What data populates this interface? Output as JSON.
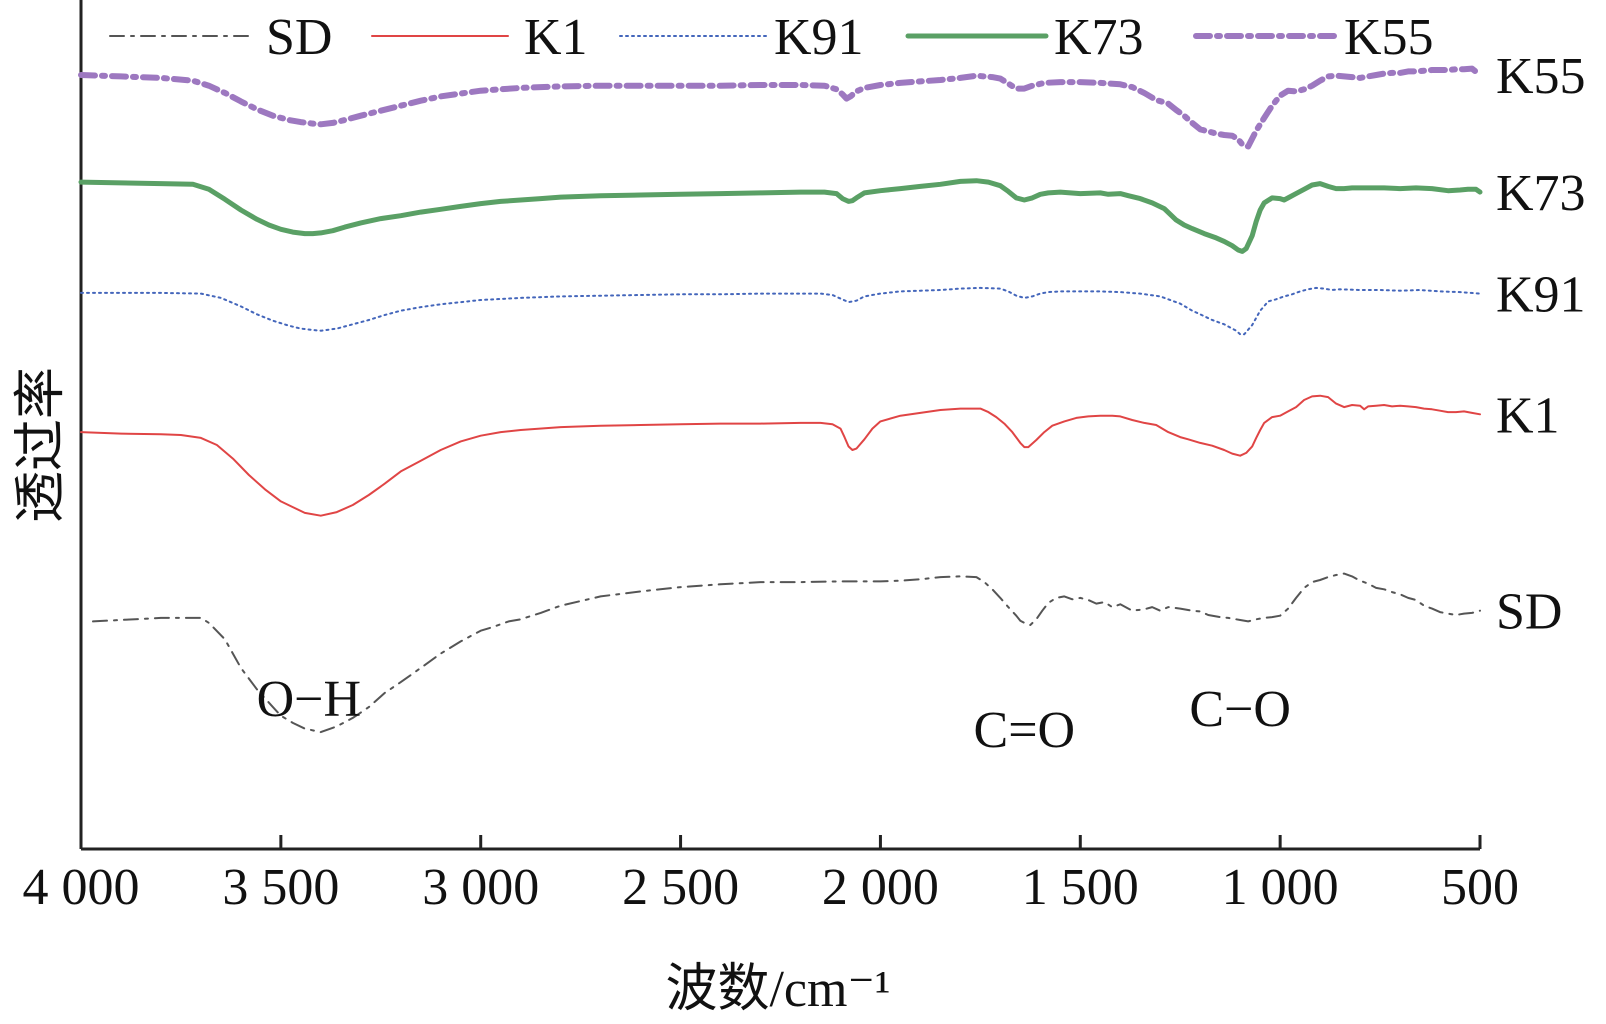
{
  "chart_data": {
    "type": "line",
    "title": "",
    "xlabel": "波数/cm⁻¹",
    "ylabel": "透过率",
    "xlim": [
      4000,
      500
    ],
    "xticks": [
      4000,
      3500,
      3000,
      2500,
      2000,
      1500,
      1000,
      500
    ],
    "xtick_labels": [
      "4 000",
      "3 500",
      "3 000",
      "2 500",
      "2 000",
      "1 500",
      "1 000",
      "500"
    ],
    "yticks": [],
    "y_units": "relative transmittance (offset stacked, arbitrary)",
    "legend": {
      "placement": "top",
      "entries": [
        "SD",
        "K1",
        "K91",
        "K73",
        "K55"
      ]
    },
    "annotations": [
      {
        "text": "O−H",
        "x": 3430
      },
      {
        "text": "C=O",
        "x": 1640
      },
      {
        "text": "C−O",
        "x": 1100
      }
    ],
    "series": [
      {
        "name": "SD",
        "color": "#555555",
        "dash": "dashdot",
        "width": 2,
        "end_label": "SD",
        "x": [
          3970,
          3800,
          3700,
          3680,
          3640,
          3600,
          3560,
          3520,
          3500,
          3470,
          3440,
          3400,
          3360,
          3320,
          3280,
          3240,
          3200,
          3150,
          3100,
          3050,
          3000,
          2970,
          2930,
          2900,
          2850,
          2800,
          2700,
          2600,
          2500,
          2400,
          2300,
          2200,
          2100,
          2000,
          1950,
          1900,
          1850,
          1800,
          1760,
          1740,
          1720,
          1700,
          1680,
          1660,
          1650,
          1640,
          1625,
          1610,
          1595,
          1580,
          1560,
          1540,
          1520,
          1500,
          1480,
          1460,
          1440,
          1420,
          1400,
          1370,
          1340,
          1320,
          1300,
          1280,
          1250,
          1220,
          1200,
          1180,
          1150,
          1130,
          1100,
          1080,
          1060,
          1040,
          1020,
          1000,
          980,
          960,
          940,
          920,
          900,
          880,
          860,
          840,
          820,
          800,
          780,
          760,
          740,
          720,
          700,
          680,
          660,
          640,
          620,
          600,
          580,
          560,
          540,
          520,
          500
        ],
        "y": [
          0.25,
          0.255,
          0.255,
          0.248,
          0.225,
          0.185,
          0.155,
          0.13,
          0.118,
          0.108,
          0.1,
          0.095,
          0.103,
          0.115,
          0.13,
          0.15,
          0.165,
          0.185,
          0.205,
          0.222,
          0.237,
          0.242,
          0.25,
          0.253,
          0.262,
          0.272,
          0.285,
          0.292,
          0.298,
          0.302,
          0.305,
          0.305,
          0.306,
          0.306,
          0.307,
          0.309,
          0.312,
          0.313,
          0.312,
          0.305,
          0.295,
          0.283,
          0.27,
          0.258,
          0.251,
          0.248,
          0.245,
          0.253,
          0.265,
          0.276,
          0.283,
          0.285,
          0.281,
          0.283,
          0.28,
          0.275,
          0.277,
          0.27,
          0.274,
          0.265,
          0.267,
          0.27,
          0.265,
          0.27,
          0.268,
          0.265,
          0.264,
          0.259,
          0.256,
          0.255,
          0.252,
          0.25,
          0.253,
          0.255,
          0.256,
          0.258,
          0.268,
          0.283,
          0.297,
          0.305,
          0.308,
          0.312,
          0.315,
          0.317,
          0.313,
          0.307,
          0.303,
          0.297,
          0.295,
          0.291,
          0.288,
          0.283,
          0.28,
          0.272,
          0.268,
          0.263,
          0.261,
          0.259,
          0.261,
          0.262,
          0.265
        ]
      },
      {
        "name": "K1",
        "color": "#e04545",
        "dash": "solid",
        "width": 2,
        "end_label": "K1",
        "x": [
          4000,
          3900,
          3800,
          3750,
          3700,
          3660,
          3620,
          3580,
          3540,
          3500,
          3470,
          3440,
          3400,
          3360,
          3320,
          3280,
          3240,
          3200,
          3150,
          3100,
          3050,
          3000,
          2950,
          2900,
          2800,
          2700,
          2600,
          2500,
          2400,
          2300,
          2200,
          2150,
          2120,
          2100,
          2090,
          2080,
          2070,
          2060,
          2040,
          2020,
          2000,
          1950,
          1900,
          1850,
          1800,
          1750,
          1730,
          1710,
          1690,
          1670,
          1650,
          1640,
          1630,
          1610,
          1590,
          1570,
          1540,
          1510,
          1480,
          1450,
          1420,
          1400,
          1370,
          1340,
          1310,
          1280,
          1250,
          1230,
          1200,
          1170,
          1140,
          1120,
          1100,
          1085,
          1070,
          1060,
          1050,
          1040,
          1020,
          1000,
          980,
          960,
          940,
          920,
          900,
          880,
          860,
          840,
          820,
          800,
          790,
          780,
          760,
          740,
          720,
          700,
          680,
          660,
          640,
          620,
          600,
          580,
          560,
          540,
          520,
          500
        ],
        "y": [
          0.515,
          0.513,
          0.512,
          0.511,
          0.507,
          0.497,
          0.478,
          0.455,
          0.435,
          0.418,
          0.41,
          0.402,
          0.398,
          0.403,
          0.413,
          0.427,
          0.443,
          0.46,
          0.475,
          0.49,
          0.502,
          0.51,
          0.515,
          0.518,
          0.522,
          0.524,
          0.525,
          0.526,
          0.527,
          0.527,
          0.528,
          0.528,
          0.526,
          0.52,
          0.508,
          0.495,
          0.49,
          0.492,
          0.505,
          0.52,
          0.53,
          0.538,
          0.542,
          0.546,
          0.548,
          0.548,
          0.543,
          0.536,
          0.527,
          0.515,
          0.5,
          0.494,
          0.494,
          0.504,
          0.515,
          0.524,
          0.53,
          0.535,
          0.537,
          0.538,
          0.538,
          0.537,
          0.532,
          0.528,
          0.525,
          0.515,
          0.508,
          0.505,
          0.5,
          0.496,
          0.49,
          0.485,
          0.482,
          0.486,
          0.495,
          0.507,
          0.518,
          0.528,
          0.536,
          0.538,
          0.544,
          0.55,
          0.56,
          0.565,
          0.566,
          0.564,
          0.555,
          0.55,
          0.553,
          0.552,
          0.547,
          0.551,
          0.552,
          0.553,
          0.551,
          0.552,
          0.551,
          0.55,
          0.548,
          0.547,
          0.545,
          0.543,
          0.543,
          0.544,
          0.542,
          0.54
        ]
      },
      {
        "name": "K91",
        "color": "#4466bb",
        "dash": "dotted",
        "width": 2,
        "end_label": "K91",
        "x": [
          4000,
          3900,
          3800,
          3700,
          3650,
          3600,
          3560,
          3520,
          3480,
          3450,
          3420,
          3400,
          3360,
          3320,
          3280,
          3240,
          3200,
          3150,
          3100,
          3000,
          2900,
          2800,
          2700,
          2600,
          2500,
          2400,
          2300,
          2200,
          2150,
          2120,
          2100,
          2080,
          2060,
          2040,
          2000,
          1950,
          1900,
          1850,
          1800,
          1750,
          1700,
          1680,
          1660,
          1640,
          1620,
          1600,
          1580,
          1550,
          1500,
          1450,
          1400,
          1350,
          1300,
          1250,
          1220,
          1200,
          1170,
          1140,
          1110,
          1100,
          1090,
          1070,
          1050,
          1030,
          1010,
          990,
          970,
          950,
          930,
          910,
          890,
          870,
          850,
          800,
          750,
          700,
          650,
          600,
          550,
          500
        ],
        "y": [
          0.71,
          0.71,
          0.71,
          0.709,
          0.703,
          0.691,
          0.68,
          0.671,
          0.664,
          0.66,
          0.658,
          0.657,
          0.66,
          0.666,
          0.672,
          0.679,
          0.685,
          0.69,
          0.694,
          0.7,
          0.703,
          0.705,
          0.706,
          0.707,
          0.708,
          0.708,
          0.709,
          0.709,
          0.709,
          0.707,
          0.702,
          0.697,
          0.699,
          0.705,
          0.709,
          0.712,
          0.713,
          0.714,
          0.716,
          0.717,
          0.716,
          0.712,
          0.706,
          0.703,
          0.705,
          0.709,
          0.711,
          0.712,
          0.712,
          0.712,
          0.711,
          0.709,
          0.705,
          0.695,
          0.685,
          0.68,
          0.672,
          0.666,
          0.657,
          0.652,
          0.652,
          0.665,
          0.685,
          0.698,
          0.701,
          0.705,
          0.708,
          0.712,
          0.715,
          0.717,
          0.716,
          0.714,
          0.715,
          0.714,
          0.714,
          0.713,
          0.714,
          0.712,
          0.711,
          0.709
        ]
      },
      {
        "name": "K73",
        "color": "#5aa065",
        "dash": "solid",
        "width": 5,
        "end_label": "K73",
        "x": [
          4000,
          3900,
          3800,
          3720,
          3680,
          3640,
          3600,
          3560,
          3530,
          3500,
          3470,
          3440,
          3420,
          3400,
          3370,
          3340,
          3300,
          3250,
          3200,
          3150,
          3100,
          3050,
          3000,
          2950,
          2900,
          2850,
          2800,
          2700,
          2600,
          2500,
          2400,
          2300,
          2200,
          2140,
          2110,
          2095,
          2080,
          2070,
          2060,
          2040,
          2000,
          1950,
          1900,
          1850,
          1800,
          1760,
          1730,
          1700,
          1680,
          1660,
          1640,
          1620,
          1600,
          1580,
          1550,
          1500,
          1450,
          1430,
          1400,
          1380,
          1350,
          1320,
          1290,
          1260,
          1240,
          1220,
          1190,
          1160,
          1140,
          1120,
          1105,
          1095,
          1085,
          1070,
          1060,
          1050,
          1040,
          1020,
          1000,
          990,
          980,
          960,
          940,
          920,
          900,
          880,
          860,
          840,
          820,
          800,
          780,
          740,
          700,
          660,
          620,
          580,
          550,
          530,
          510,
          500
        ],
        "y": [
          0.865,
          0.864,
          0.863,
          0.862,
          0.855,
          0.841,
          0.826,
          0.813,
          0.805,
          0.799,
          0.795,
          0.793,
          0.793,
          0.794,
          0.797,
          0.802,
          0.808,
          0.814,
          0.818,
          0.823,
          0.827,
          0.831,
          0.835,
          0.838,
          0.84,
          0.842,
          0.844,
          0.846,
          0.847,
          0.848,
          0.849,
          0.85,
          0.851,
          0.851,
          0.849,
          0.842,
          0.838,
          0.839,
          0.843,
          0.85,
          0.853,
          0.856,
          0.859,
          0.862,
          0.866,
          0.867,
          0.865,
          0.86,
          0.852,
          0.843,
          0.84,
          0.843,
          0.848,
          0.85,
          0.851,
          0.849,
          0.85,
          0.848,
          0.849,
          0.846,
          0.842,
          0.836,
          0.828,
          0.812,
          0.805,
          0.8,
          0.793,
          0.787,
          0.782,
          0.776,
          0.77,
          0.768,
          0.772,
          0.79,
          0.81,
          0.826,
          0.836,
          0.843,
          0.842,
          0.84,
          0.843,
          0.849,
          0.855,
          0.861,
          0.863,
          0.859,
          0.856,
          0.856,
          0.857,
          0.857,
          0.857,
          0.857,
          0.856,
          0.857,
          0.856,
          0.853,
          0.854,
          0.855,
          0.855,
          0.851
        ]
      },
      {
        "name": "K55",
        "color": "#9d78c0",
        "dash": "dashdot",
        "width": 6,
        "end_label": "K55",
        "x": [
          4000,
          3900,
          3800,
          3720,
          3680,
          3640,
          3600,
          3560,
          3520,
          3480,
          3450,
          3420,
          3400,
          3370,
          3340,
          3300,
          3250,
          3200,
          3150,
          3100,
          3000,
          2900,
          2800,
          2700,
          2600,
          2500,
          2400,
          2300,
          2200,
          2140,
          2110,
          2095,
          2085,
          2075,
          2060,
          2040,
          2000,
          1950,
          1900,
          1850,
          1800,
          1760,
          1720,
          1700,
          1680,
          1660,
          1640,
          1620,
          1590,
          1550,
          1500,
          1450,
          1400,
          1370,
          1340,
          1310,
          1280,
          1260,
          1240,
          1220,
          1200,
          1180,
          1160,
          1140,
          1120,
          1105,
          1095,
          1080,
          1060,
          1040,
          1020,
          1000,
          980,
          960,
          940,
          920,
          900,
          880,
          860,
          840,
          820,
          800,
          780,
          760,
          740,
          720,
          700,
          680,
          660,
          640,
          620,
          600,
          580,
          560,
          540,
          520,
          500
        ],
        "y": [
          1.015,
          1.013,
          1.011,
          1.007,
          1.0,
          0.99,
          0.978,
          0.967,
          0.958,
          0.952,
          0.949,
          0.947,
          0.946,
          0.948,
          0.952,
          0.958,
          0.965,
          0.972,
          0.979,
          0.985,
          0.993,
          0.997,
          0.999,
          1.0,
          1.0,
          1.0,
          1.0,
          1.001,
          1.001,
          1.0,
          0.995,
          0.988,
          0.982,
          0.985,
          0.992,
          0.997,
          1.001,
          1.004,
          1.006,
          1.008,
          1.011,
          1.014,
          1.012,
          1.01,
          1.003,
          0.996,
          0.996,
          1.0,
          1.004,
          1.005,
          1.005,
          1.004,
          1.002,
          0.998,
          0.99,
          0.98,
          0.975,
          0.966,
          0.958,
          0.948,
          0.939,
          0.936,
          0.933,
          0.931,
          0.93,
          0.925,
          0.918,
          0.915,
          0.937,
          0.955,
          0.972,
          0.986,
          0.993,
          0.992,
          0.995,
          1.0,
          1.007,
          1.013,
          1.014,
          1.013,
          1.012,
          1.011,
          1.013,
          1.015,
          1.017,
          1.018,
          1.018,
          1.02,
          1.02,
          1.021,
          1.022,
          1.022,
          1.022,
          1.023,
          1.023,
          1.024,
          1.015
        ]
      }
    ]
  }
}
